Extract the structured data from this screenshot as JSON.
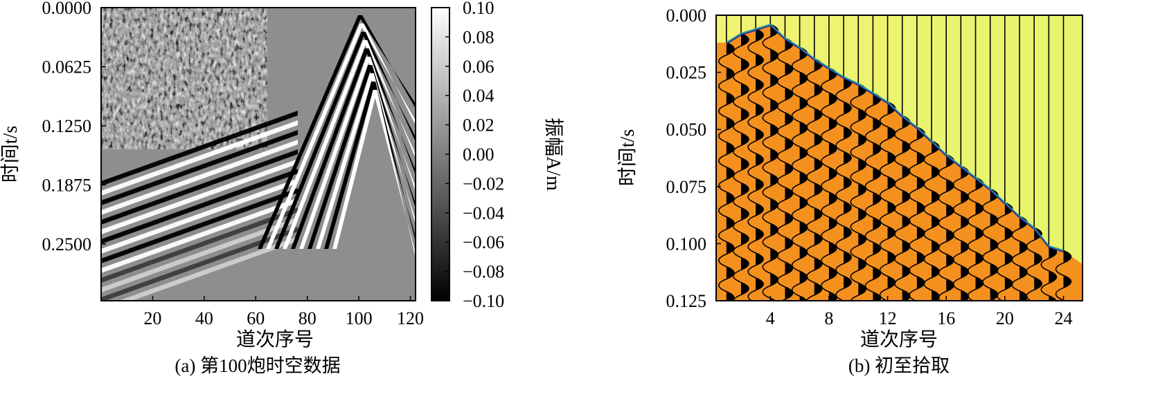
{
  "chart_data": [
    {
      "type": "heatmap",
      "caption": "(a) 第100炮时空数据",
      "xlabel": "道次序号",
      "ylabel": "时间t/s",
      "x_ticks": [
        "20",
        "40",
        "60",
        "80",
        "100",
        "120"
      ],
      "y_ticks": [
        "0.0000",
        "0.0625",
        "0.1250",
        "0.1875",
        "0.2500"
      ],
      "xlim": [
        0,
        122
      ],
      "ylim": [
        0,
        0.31
      ],
      "colorbar": {
        "label": "振幅A/m",
        "ticks": [
          "0.10",
          "0.08",
          "0.06",
          "0.04",
          "0.02",
          "0.00",
          "−0.02",
          "−0.04",
          "−0.06",
          "−0.08",
          "−0.10"
        ],
        "range": [
          -0.1,
          0.1
        ],
        "colormap": "gray"
      }
    },
    {
      "type": "line",
      "caption": "(b) 初至拾取",
      "xlabel": "道次序号",
      "ylabel": "时间t/s",
      "x_ticks": [
        "4",
        "8",
        "12",
        "16",
        "20",
        "24"
      ],
      "y_ticks": [
        "0.000",
        "0.025",
        "0.050",
        "0.075",
        "0.100",
        "0.125"
      ],
      "xlim": [
        0.3,
        25.3
      ],
      "ylim": [
        0,
        0.125
      ],
      "background_colors": {
        "before_first_break": "#eef57a",
        "after_first_break": "#f4901e"
      },
      "first_break_pick": {
        "x": [
          1,
          2,
          3,
          4,
          5,
          6,
          7,
          8,
          9,
          10,
          11,
          12,
          13,
          14,
          15,
          16,
          17,
          18,
          19,
          20,
          21,
          22,
          23,
          24
        ],
        "y": [
          0.012,
          0.008,
          0.006,
          0.004,
          0.01,
          0.014,
          0.019,
          0.023,
          0.027,
          0.03,
          0.034,
          0.038,
          0.044,
          0.049,
          0.055,
          0.061,
          0.066,
          0.071,
          0.076,
          0.082,
          0.088,
          0.093,
          0.101,
          0.103
        ],
        "colors": [
          "#2a9a9a",
          "#1e2a9a"
        ]
      }
    }
  ]
}
